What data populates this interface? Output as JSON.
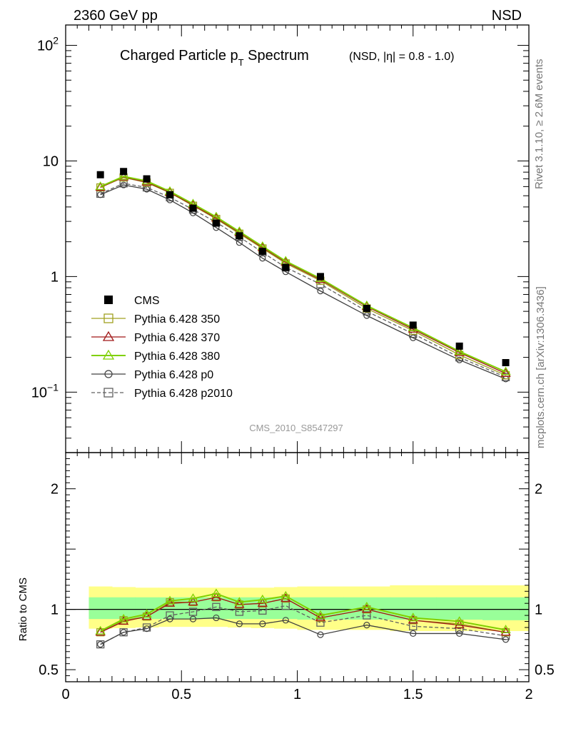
{
  "header": {
    "energy_label": "2360 GeV pp",
    "process_label": "NSD"
  },
  "title": {
    "main": "Charged Particle p",
    "subscript": "T",
    "main_suffix": " Spectrum",
    "condition": "(NSD, |η| = 0.8 - 1.0)"
  },
  "side_text": {
    "rivet": "Rivet 3.1.10, ≥ 2.6M events",
    "mcplots": "mcplots.cern.ch [arXiv:1306.3436]"
  },
  "analysis_id": "CMS_2010_S8547297",
  "colors": {
    "data": "#000000",
    "p350": "#a0a020",
    "p370": "#a01818",
    "p380": "#80d000",
    "p0": "#404040",
    "p2010": "#606060",
    "band_yellow": "#ffff88",
    "band_green": "#99ff99"
  },
  "chart_data": [
    {
      "type": "scatter",
      "panel": "main",
      "yscale": "log",
      "xlim": [
        0,
        2
      ],
      "ylim": [
        0.03,
        150
      ],
      "y_tick_labels": [
        "10⁻¹",
        "1",
        "10",
        "10²"
      ],
      "x": [
        0.15,
        0.25,
        0.35,
        0.45,
        0.55,
        0.65,
        0.75,
        0.85,
        0.95,
        1.1,
        1.3,
        1.5,
        1.7,
        1.9
      ],
      "series": [
        {
          "name": "CMS",
          "key": "cms",
          "marker": "filled-square",
          "values": [
            7.6,
            8.1,
            7.0,
            5.1,
            3.9,
            2.9,
            2.25,
            1.65,
            1.2,
            1.0,
            0.53,
            0.38,
            0.25,
            0.18
          ]
        },
        {
          "name": "Pythia 6.428 350",
          "key": "p350",
          "marker": "open-square",
          "values": [
            5.9,
            7.2,
            6.5,
            5.3,
            4.1,
            3.15,
            2.35,
            1.75,
            1.3,
            0.92,
            0.53,
            0.34,
            0.21,
            0.14
          ]
        },
        {
          "name": "Pythia 6.428 370",
          "key": "p370",
          "marker": "open-triangle",
          "values": [
            5.9,
            7.25,
            6.55,
            5.35,
            4.15,
            3.2,
            2.4,
            1.78,
            1.33,
            0.94,
            0.55,
            0.35,
            0.22,
            0.145
          ]
        },
        {
          "name": "Pythia 6.428 380",
          "key": "p380",
          "marker": "open-triangle",
          "values": [
            6.0,
            7.35,
            6.7,
            5.45,
            4.25,
            3.28,
            2.45,
            1.82,
            1.36,
            0.96,
            0.56,
            0.36,
            0.225,
            0.15
          ]
        },
        {
          "name": "Pythia 6.428 p0",
          "key": "p0",
          "marker": "open-circle",
          "values": [
            5.1,
            6.2,
            5.7,
            4.6,
            3.55,
            2.65,
            1.97,
            1.44,
            1.1,
            0.75,
            0.46,
            0.295,
            0.19,
            0.13
          ]
        },
        {
          "name": "Pythia 6.428 p2010",
          "key": "p2010",
          "marker": "open-square",
          "dashed": true,
          "values": [
            5.2,
            6.4,
            5.9,
            4.85,
            3.8,
            2.95,
            2.2,
            1.62,
            1.2,
            0.86,
            0.5,
            0.32,
            0.2,
            0.135
          ]
        }
      ]
    },
    {
      "type": "line",
      "panel": "ratio",
      "xlim": [
        0,
        2
      ],
      "ylim": [
        0.4,
        2.3
      ],
      "ylabel": "Ratio to CMS",
      "x_tick_labels": [
        "0",
        "0.5",
        "1",
        "1.5",
        "2"
      ],
      "y_tick_labels": [
        "0.5",
        "1",
        "2"
      ],
      "x": [
        0.15,
        0.25,
        0.35,
        0.45,
        0.55,
        0.65,
        0.75,
        0.85,
        0.95,
        1.1,
        1.3,
        1.5,
        1.7,
        1.9
      ],
      "band_edges": [
        0.1,
        0.2,
        0.3,
        0.4,
        0.5,
        0.6,
        0.7,
        0.8,
        0.9,
        1.0,
        1.2,
        1.4,
        1.6,
        1.8,
        2.0
      ],
      "uncertainty_band": {
        "total_low": [
          0.84,
          0.845,
          0.85,
          0.855,
          0.855,
          0.855,
          0.85,
          0.845,
          0.84,
          0.83,
          0.83,
          0.82,
          0.82,
          0.82
        ],
        "total_high": [
          1.19,
          1.185,
          1.18,
          1.18,
          1.18,
          1.18,
          1.18,
          1.18,
          1.185,
          1.19,
          1.19,
          1.2,
          1.2,
          1.2
        ],
        "stat_low": [
          0.92,
          0.92,
          0.92,
          0.92,
          0.92,
          0.92,
          0.92,
          0.92,
          0.92,
          0.915,
          0.915,
          0.915,
          0.915,
          0.91
        ],
        "stat_high": [
          1.1,
          1.1,
          1.1,
          1.1,
          1.1,
          1.1,
          1.1,
          1.1,
          1.1,
          1.1,
          1.1,
          1.1,
          1.1,
          1.1
        ]
      },
      "series": [
        {
          "name": "Pythia 6.428 350",
          "key": "p350",
          "values": [
            0.81,
            0.91,
            0.94,
            1.06,
            1.06,
            1.1,
            1.04,
            1.05,
            1.09,
            0.93,
            1.0,
            0.91,
            0.88,
            0.81
          ]
        },
        {
          "name": "Pythia 6.428 370",
          "key": "p370",
          "values": [
            0.81,
            0.9,
            0.94,
            1.05,
            1.06,
            1.1,
            1.04,
            1.05,
            1.09,
            0.93,
            1.0,
            0.91,
            0.87,
            0.81
          ]
        },
        {
          "name": "Pythia 6.428 380",
          "key": "p380",
          "values": [
            0.82,
            0.92,
            0.96,
            1.07,
            1.09,
            1.13,
            1.06,
            1.08,
            1.11,
            0.95,
            1.02,
            0.93,
            0.9,
            0.83
          ]
        },
        {
          "name": "Pythia 6.428 p0",
          "key": "p0",
          "values": [
            0.71,
            0.81,
            0.84,
            0.92,
            0.92,
            0.93,
            0.88,
            0.88,
            0.91,
            0.79,
            0.87,
            0.8,
            0.8,
            0.75
          ]
        },
        {
          "name": "Pythia 6.428 p2010",
          "key": "p2010",
          "values": [
            0.71,
            0.81,
            0.85,
            0.95,
            0.98,
            1.02,
            0.98,
            0.99,
            1.03,
            0.89,
            0.95,
            0.86,
            0.84,
            0.78
          ]
        }
      ]
    }
  ]
}
